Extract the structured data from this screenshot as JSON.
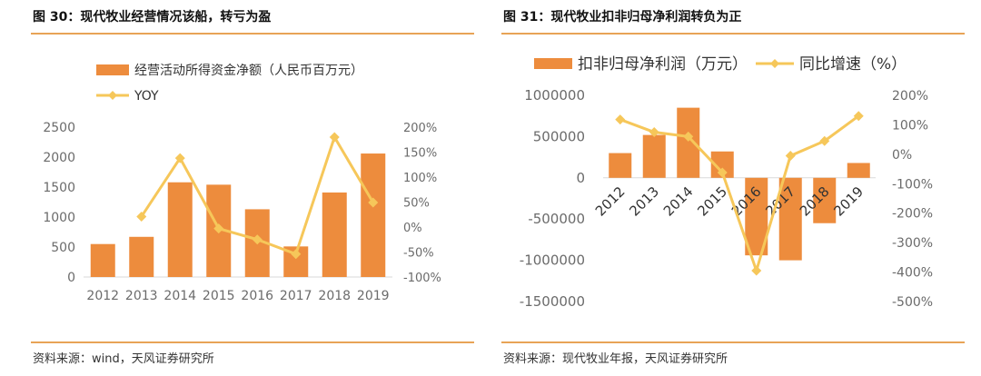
{
  "colors": {
    "bar": "#ed8c3d",
    "line": "#f6c75a",
    "rule": "#e8a356",
    "axis": "#d9d9d9",
    "tick": "#6b6b6b"
  },
  "figures": [
    {
      "title": "图 30：现代牧业经营情况该船，转亏为盈",
      "source": "资料来源：wind，天风证券研究所"
    },
    {
      "title": "图 31：现代牧业扣非归母净利润转负为正",
      "source": "资料来源：现代牧业年报，天风证券研究所"
    }
  ],
  "chart_data": [
    {
      "type": "bar",
      "categories": [
        "2012",
        "2013",
        "2014",
        "2015",
        "2016",
        "2017",
        "2018",
        "2019"
      ],
      "series": [
        {
          "name": "经营活动所得资金净额（人民币百万元）",
          "type": "bar",
          "axis": "left",
          "values": [
            550,
            670,
            1580,
            1540,
            1130,
            510,
            1410,
            2060
          ]
        },
        {
          "name": "YOY",
          "type": "line",
          "axis": "right",
          "values": [
            null,
            21,
            138,
            -3,
            -25,
            -54,
            180,
            49
          ]
        }
      ],
      "y_left": {
        "ticks": [
          "0",
          "500",
          "1000",
          "1500",
          "2000",
          "2500"
        ],
        "range": [
          0,
          2500
        ]
      },
      "y_right": {
        "ticks": [
          "-100%",
          "-50%",
          "0%",
          "50%",
          "100%",
          "150%",
          "200%"
        ],
        "range": [
          -100,
          200
        ]
      },
      "legend": "top-left",
      "grid": false
    },
    {
      "type": "bar",
      "categories": [
        "2012",
        "2013",
        "2014",
        "2015",
        "2016",
        "2017",
        "2018",
        "2019"
      ],
      "series": [
        {
          "name": "扣非归母净利润（万元）",
          "type": "bar",
          "axis": "left",
          "values": [
            300000,
            520000,
            850000,
            320000,
            -940000,
            -1000000,
            -550000,
            180000
          ]
        },
        {
          "name": "同比增速（%）",
          "type": "line",
          "axis": "right",
          "values": [
            118,
            75,
            60,
            -62,
            -395,
            -5,
            45,
            130
          ]
        }
      ],
      "y_left": {
        "ticks": [
          "-1500000",
          "-1000000",
          "-500000",
          "0",
          "500000",
          "1000000"
        ],
        "range": [
          -1500000,
          1000000
        ]
      },
      "y_right": {
        "ticks": [
          "-500%",
          "-400%",
          "-300%",
          "-200%",
          "-100%",
          "0%",
          "100%",
          "200%"
        ],
        "range": [
          -500,
          200
        ]
      },
      "legend": "top",
      "grid": false
    }
  ]
}
